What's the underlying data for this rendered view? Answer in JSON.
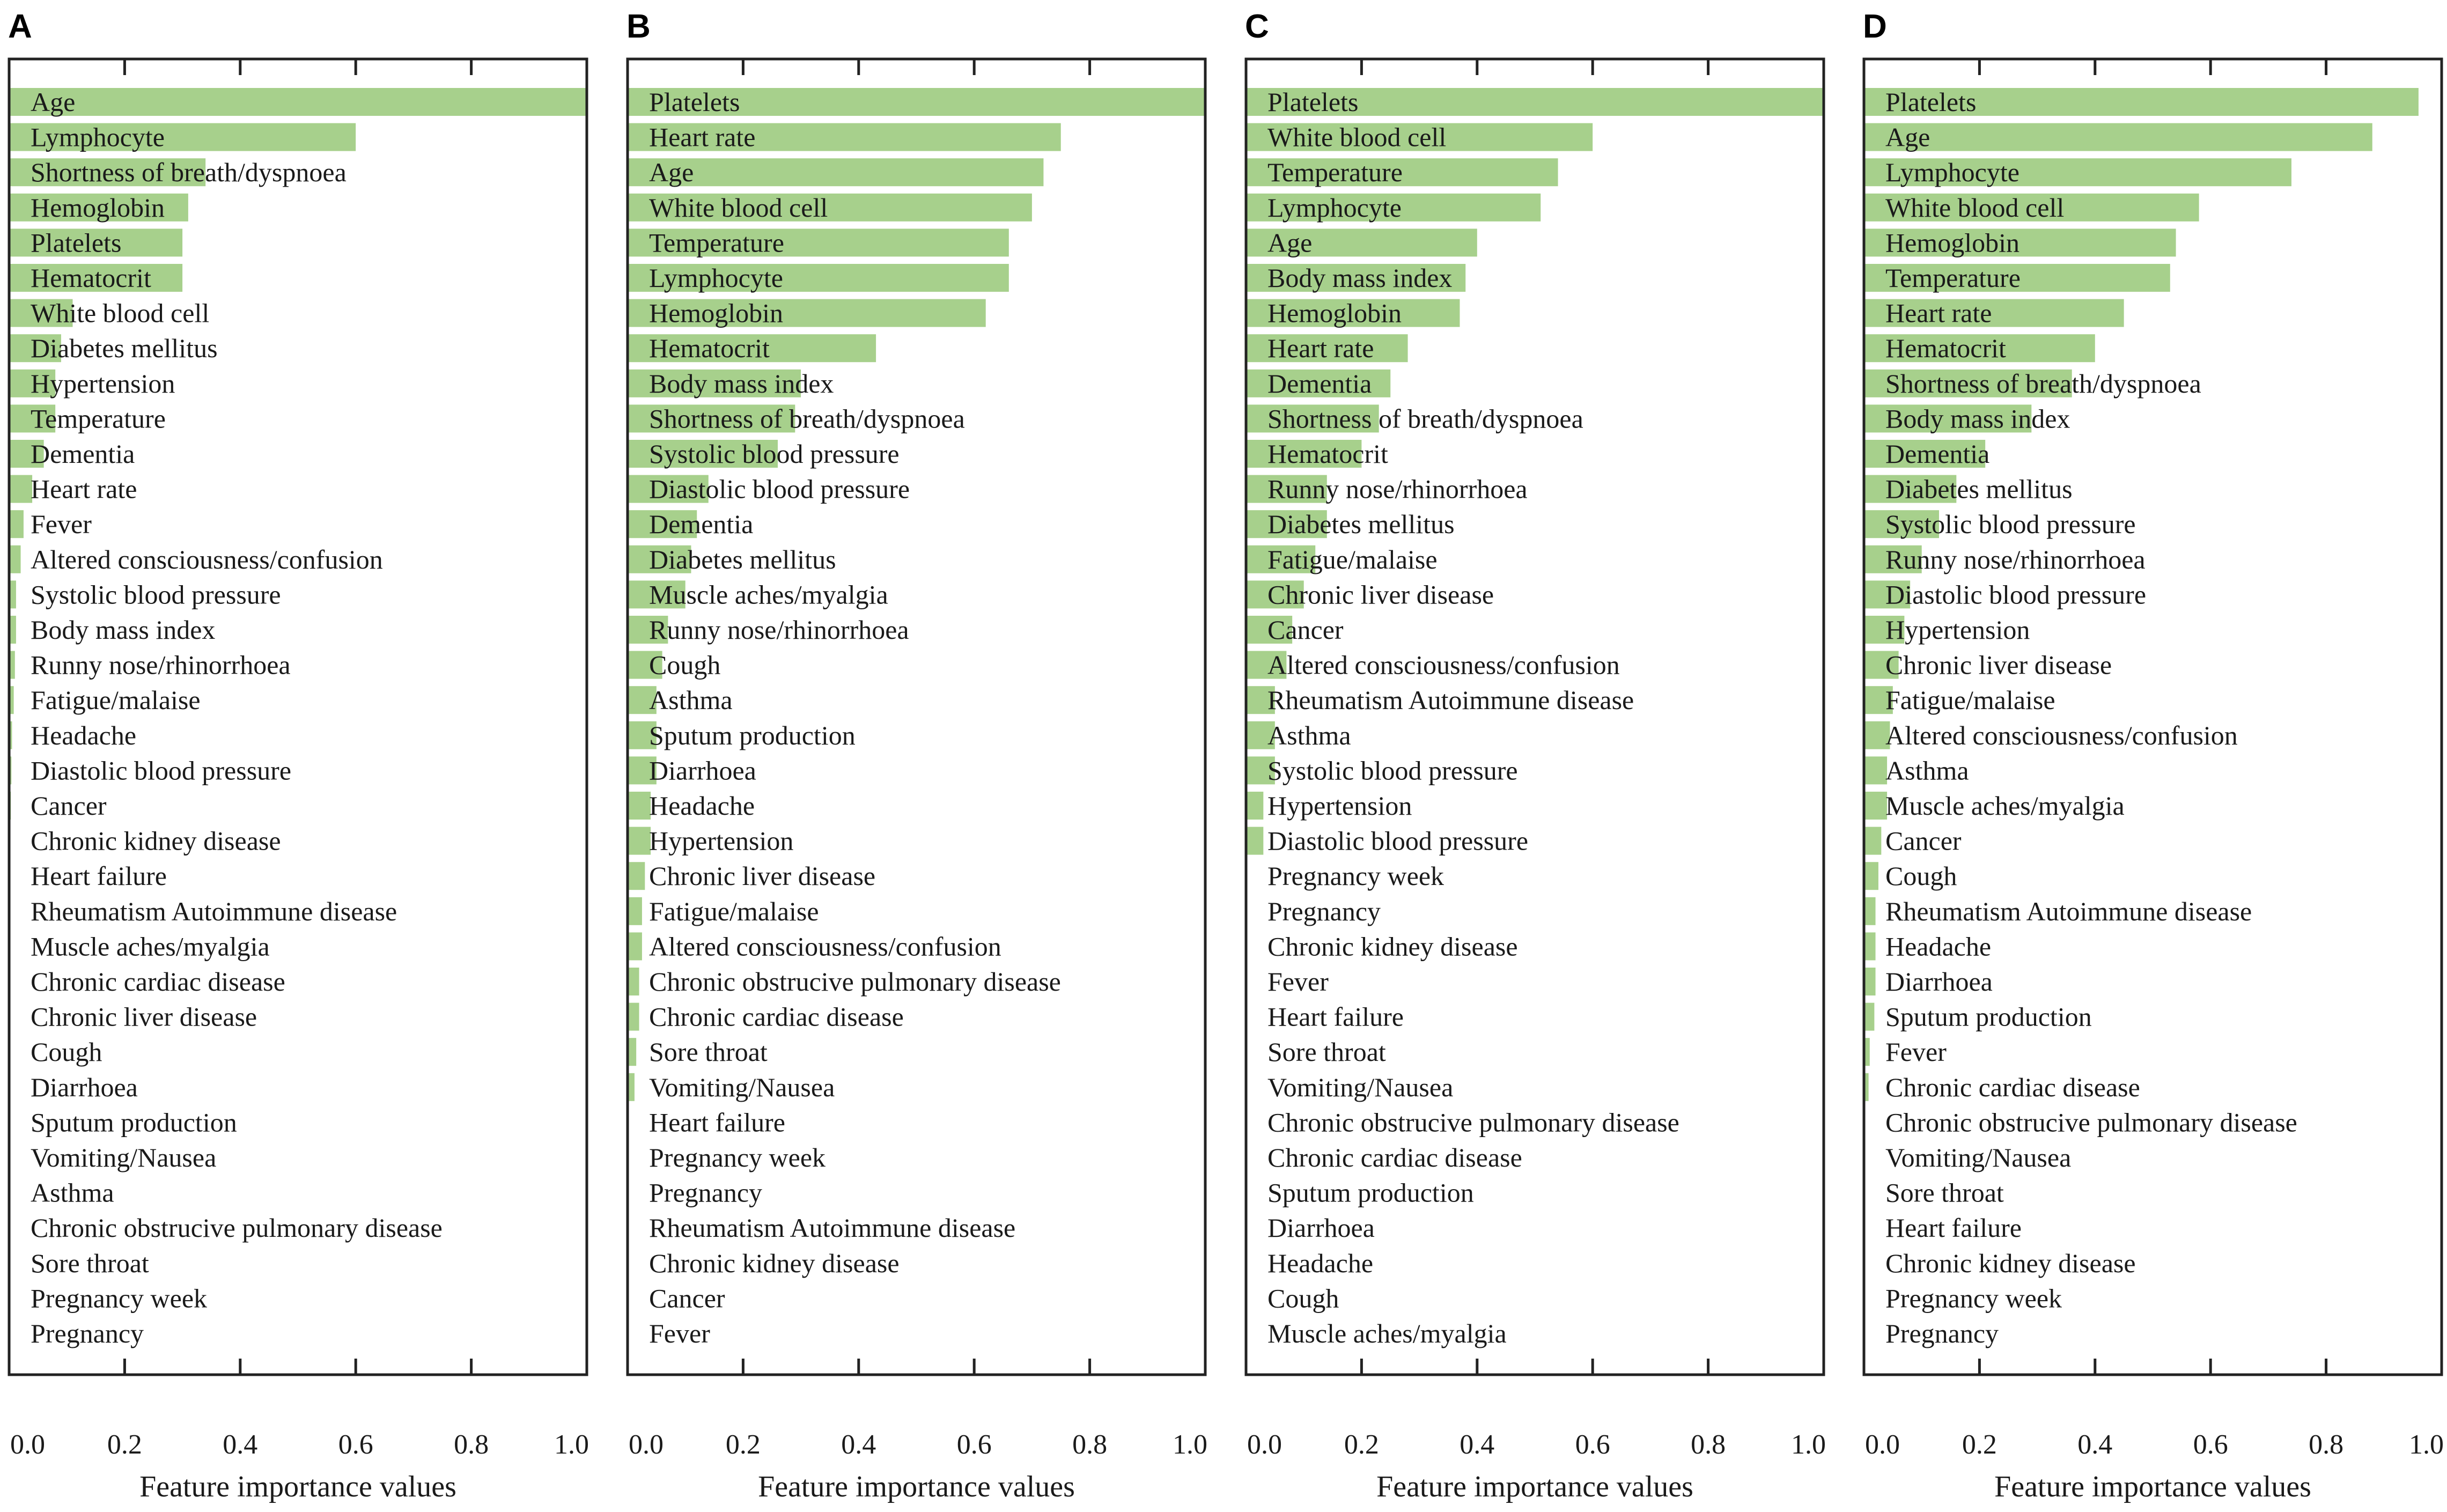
{
  "chart_data": [
    {
      "panel": "A",
      "type": "bar",
      "orientation": "horizontal",
      "xlabel": "Feature importance values",
      "xlim": [
        0,
        1
      ],
      "xticks": [
        "0.0",
        "0.2",
        "0.4",
        "0.6",
        "0.8",
        "1.0"
      ],
      "categories": [
        "Age",
        "Lymphocyte",
        "Shortness of breath/dyspnoea",
        "Hemoglobin",
        "Platelets",
        "Hematocrit",
        "White blood cell",
        "Diabetes mellitus",
        "Hypertension",
        "Temperature",
        "Dementia",
        "Heart rate",
        "Fever",
        "Altered consciousness/confusion",
        "Systolic blood pressure",
        "Body mass index",
        "Runny nose/rhinorrhoea",
        "Fatigue/malaise",
        "Headache",
        "Diastolic blood pressure",
        "Cancer",
        "Chronic kidney disease",
        "Heart failure",
        "Rheumatism Autoimmune disease",
        "Muscle aches/myalgia",
        "Chronic cardiac disease",
        "Chronic liver disease",
        "Cough",
        "Diarrhoea",
        "Sputum production",
        "Vomiting/Nausea",
        "Asthma",
        "Chronic obstrucive pulmonary disease",
        "Sore throat",
        "Pregnancy week",
        "Pregnancy"
      ],
      "values": [
        1.0,
        0.6,
        0.34,
        0.31,
        0.3,
        0.3,
        0.11,
        0.09,
        0.08,
        0.08,
        0.06,
        0.04,
        0.025,
        0.02,
        0.012,
        0.012,
        0.01,
        0.008,
        0.005,
        0.004,
        0.003,
        0.002,
        0.002,
        0.001,
        0.001,
        0.001,
        0.001,
        0.001,
        0.0,
        0.0,
        0.0,
        0.0,
        0.0,
        0.0,
        0.0,
        0.0
      ]
    },
    {
      "panel": "B",
      "type": "bar",
      "orientation": "horizontal",
      "xlabel": "Feature importance values",
      "xlim": [
        0,
        1
      ],
      "xticks": [
        "0.0",
        "0.2",
        "0.4",
        "0.6",
        "0.8",
        "1.0"
      ],
      "categories": [
        "Platelets",
        "Heart rate",
        "Age",
        "White blood cell",
        "Temperature",
        "Lymphocyte",
        "Hemoglobin",
        "Hematocrit",
        "Body mass index",
        "Shortness of breath/dyspnoea",
        "Systolic blood pressure",
        "Diastolic blood pressure",
        "Dementia",
        "Diabetes mellitus",
        "Muscle aches/myalgia",
        "Runny nose/rhinorrhoea",
        "Cough",
        "Asthma",
        "Sputum production",
        "Diarrhoea",
        "Headache",
        "Hypertension",
        "Chronic liver disease",
        "Fatigue/malaise",
        "Altered consciousness/confusion",
        "Chronic obstrucive pulmonary disease",
        "Chronic cardiac disease",
        "Sore throat",
        "Vomiting/Nausea",
        "Heart failure",
        "Pregnancy week",
        "Pregnancy",
        "Rheumatism Autoimmune disease",
        "Chronic kidney disease",
        "Cancer",
        "Fever"
      ],
      "values": [
        1.0,
        0.75,
        0.72,
        0.7,
        0.66,
        0.66,
        0.62,
        0.43,
        0.3,
        0.29,
        0.26,
        0.14,
        0.12,
        0.11,
        0.1,
        0.07,
        0.06,
        0.05,
        0.05,
        0.05,
        0.04,
        0.04,
        0.03,
        0.025,
        0.025,
        0.02,
        0.02,
        0.015,
        0.012,
        0.0,
        0.0,
        0.0,
        0.0,
        0.0,
        0.0,
        0.0
      ]
    },
    {
      "panel": "C",
      "type": "bar",
      "orientation": "horizontal",
      "xlabel": "Feature importance values",
      "xlim": [
        0,
        1
      ],
      "xticks": [
        "0.0",
        "0.2",
        "0.4",
        "0.6",
        "0.8",
        "1.0"
      ],
      "categories": [
        "Platelets",
        "White blood cell",
        "Temperature",
        "Lymphocyte",
        "Age",
        "Body mass index",
        "Hemoglobin",
        "Heart rate",
        "Dementia",
        "Shortness of breath/dyspnoea",
        "Hematocrit",
        "Runny nose/rhinorrhoea",
        "Diabetes mellitus",
        "Fatigue/malaise",
        "Chronic liver disease",
        "Cancer",
        "Altered consciousness/confusion",
        "Rheumatism Autoimmune disease",
        "Asthma",
        "Systolic blood pressure",
        "Hypertension",
        "Diastolic blood pressure",
        "Pregnancy week",
        "Pregnancy",
        "Chronic kidney disease",
        "Fever",
        "Heart failure",
        "Sore throat",
        "Vomiting/Nausea",
        "Chronic obstrucive pulmonary disease",
        "Chronic cardiac disease",
        "Sputum production",
        "Diarrhoea",
        "Headache",
        "Cough",
        "Muscle aches/myalgia"
      ],
      "values": [
        1.0,
        0.6,
        0.54,
        0.51,
        0.4,
        0.38,
        0.37,
        0.28,
        0.25,
        0.23,
        0.2,
        0.14,
        0.14,
        0.12,
        0.1,
        0.08,
        0.07,
        0.05,
        0.05,
        0.05,
        0.03,
        0.03,
        0.0,
        0.0,
        0.0,
        0.0,
        0.0,
        0.0,
        0.0,
        0.0,
        0.0,
        0.0,
        0.0,
        0.0,
        0.0,
        0.0
      ]
    },
    {
      "panel": "D",
      "type": "bar",
      "orientation": "horizontal",
      "xlabel": "Feature importance values",
      "xlim": [
        0,
        1
      ],
      "xticks": [
        "0.0",
        "0.2",
        "0.4",
        "0.6",
        "0.8",
        "1.0"
      ],
      "categories": [
        "Platelets",
        "Age",
        "Lymphocyte",
        "White blood cell",
        "Hemoglobin",
        "Temperature",
        "Heart rate",
        "Hematocrit",
        "Shortness of breath/dyspnoea",
        "Body mass index",
        "Dementia",
        "Diabetes mellitus",
        "Systolic blood pressure",
        "Runny nose/rhinorrhoea",
        "Diastolic blood pressure",
        "Hypertension",
        "Chronic liver disease",
        "Fatigue/malaise",
        "Altered consciousness/confusion",
        "Asthma",
        "Muscle aches/myalgia",
        "Cancer",
        "Cough",
        "Rheumatism Autoimmune disease",
        "Headache",
        "Diarrhoea",
        "Sputum production",
        "Fever",
        "Chronic cardiac disease",
        "Chronic obstrucive pulmonary disease",
        "Vomiting/Nausea",
        "Sore throat",
        "Heart failure",
        "Chronic kidney disease",
        "Pregnancy week",
        "Pregnancy"
      ],
      "values": [
        0.96,
        0.88,
        0.74,
        0.58,
        0.54,
        0.53,
        0.45,
        0.4,
        0.36,
        0.29,
        0.21,
        0.16,
        0.13,
        0.1,
        0.08,
        0.07,
        0.06,
        0.05,
        0.045,
        0.04,
        0.04,
        0.03,
        0.025,
        0.02,
        0.02,
        0.02,
        0.018,
        0.01,
        0.008,
        0.0,
        0.0,
        0.0,
        0.0,
        0.0,
        0.0,
        0.0
      ]
    }
  ]
}
